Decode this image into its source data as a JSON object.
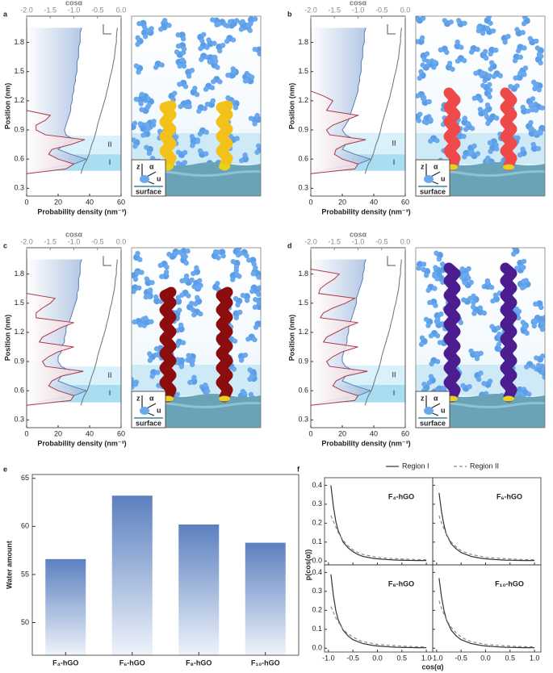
{
  "chart_data": [
    {
      "type": "density-profile",
      "panel_label": "a",
      "ylabel": "Position (nm)",
      "xlabel": "Probability density  (nm⁻³)",
      "x2label": "cosα",
      "xlim": [
        0,
        60
      ],
      "xticks": [
        0,
        20,
        40,
        60
      ],
      "x2lim": [
        -2,
        0
      ],
      "x2ticks": [
        {
          "value": -2,
          "label": "-2.0"
        },
        {
          "value": -1.5,
          "label": "-1.5"
        },
        {
          "value": -1,
          "label": "-1.0"
        },
        {
          "value": -0.5,
          "label": "-0.5"
        },
        {
          "value": 0,
          "label": "0.0"
        }
      ],
      "ylim": [
        0.22,
        2.07
      ],
      "yticks": [
        0.3,
        0.6,
        0.9,
        1.2,
        1.5,
        1.8
      ],
      "y": [
        0.45,
        0.5,
        0.55,
        0.6,
        0.65,
        0.7,
        0.75,
        0.8,
        0.85,
        0.9,
        0.95,
        1.0,
        1.05,
        1.1,
        1.15,
        1.2,
        1.25,
        1.3,
        1.35,
        1.4,
        1.45,
        1.5,
        1.55,
        1.6,
        1.65,
        1.7,
        1.75,
        1.8,
        1.85,
        1.9,
        1.95
      ],
      "regions": [
        {
          "label": "I",
          "range": [
            0.48,
            0.65
          ]
        },
        {
          "label": "II",
          "range": [
            0.65,
            0.84
          ]
        }
      ],
      "inset": {
        "z": "z",
        "alpha": "α",
        "u": "u",
        "surface": "surface"
      },
      "series": [
        {
          "color": "#5b7fb5",
          "fill": "#9fb8dc",
          "values": [
            0,
            12,
            30,
            38,
            28,
            20,
            24,
            30,
            25,
            24,
            25,
            26,
            27,
            28,
            28,
            29,
            29,
            30,
            30,
            31,
            31,
            32,
            32,
            32,
            33,
            33,
            33,
            34,
            34,
            34,
            35
          ]
        },
        {
          "color": "#a83a4a",
          "fill": "#f3d3d8",
          "values": [
            0,
            25,
            30,
            20,
            14,
            16,
            28,
            37,
            12,
            6,
            6,
            12,
            15,
            0,
            0,
            0,
            0,
            0,
            0,
            0,
            0,
            0,
            0,
            0,
            0,
            0,
            0,
            0,
            0,
            0,
            0
          ]
        },
        {
          "color": "#707070",
          "axis": "x2",
          "values": [
            -0.85,
            -0.82,
            -0.78,
            -0.72,
            -0.68,
            -0.65,
            -0.62,
            -0.58,
            -0.55,
            -0.52,
            -0.5,
            -0.47,
            -0.44,
            -0.41,
            -0.38,
            -0.35,
            -0.32,
            -0.3,
            -0.27,
            -0.25,
            -0.23,
            -0.2,
            -0.18,
            -0.16,
            -0.14,
            -0.13,
            -0.12,
            -0.1,
            -0.1,
            -0.09,
            -0.08
          ]
        }
      ]
    },
    {
      "type": "density-profile",
      "panel_label": "b",
      "ylabel": "Position (nm)",
      "xlabel": "Probability density  (nm⁻³)",
      "x2label": "cosα",
      "xlim": [
        0,
        60
      ],
      "xticks": [
        0,
        20,
        40,
        60
      ],
      "x2lim": [
        -2,
        0
      ],
      "x2ticks": [
        {
          "value": -2,
          "label": "-2.0"
        },
        {
          "value": -1.5,
          "label": "-1.5"
        },
        {
          "value": -1,
          "label": "-1.0"
        },
        {
          "value": -0.5,
          "label": "-0.5"
        },
        {
          "value": 0,
          "label": "0.0"
        }
      ],
      "ylim": [
        0.22,
        2.07
      ],
      "yticks": [
        0.3,
        0.6,
        0.9,
        1.2,
        1.5,
        1.8
      ],
      "y": [
        0.45,
        0.5,
        0.55,
        0.6,
        0.65,
        0.7,
        0.75,
        0.8,
        0.85,
        0.9,
        0.95,
        1.0,
        1.05,
        1.1,
        1.15,
        1.2,
        1.25,
        1.3,
        1.35,
        1.4,
        1.45,
        1.5,
        1.55,
        1.6,
        1.65,
        1.7,
        1.75,
        1.8,
        1.85,
        1.9,
        1.95
      ],
      "regions": [
        {
          "label": "I",
          "range": [
            0.48,
            0.65
          ]
        },
        {
          "label": "II",
          "range": [
            0.65,
            0.87
          ]
        }
      ],
      "inset": {
        "z": "z",
        "alpha": "α",
        "u": "u",
        "surface": "surface"
      },
      "series": [
        {
          "color": "#5b7fb5",
          "fill": "#9fb8dc",
          "values": [
            0,
            12,
            30,
            38,
            28,
            20,
            22,
            28,
            22,
            20,
            22,
            24,
            25,
            26,
            27,
            28,
            29,
            30,
            30,
            31,
            31,
            32,
            32,
            32,
            33,
            33,
            33,
            34,
            34,
            34,
            35
          ]
        },
        {
          "color": "#a83a4a",
          "fill": "#f3d3d8",
          "values": [
            0,
            28,
            30,
            20,
            15,
            16,
            22,
            35,
            12,
            10,
            14,
            22,
            30,
            10,
            12,
            14,
            8,
            0,
            0,
            0,
            0,
            0,
            0,
            0,
            0,
            0,
            0,
            0,
            0,
            0,
            0
          ]
        },
        {
          "color": "#707070",
          "axis": "x2",
          "values": [
            -0.85,
            -0.82,
            -0.78,
            -0.72,
            -0.68,
            -0.65,
            -0.62,
            -0.58,
            -0.55,
            -0.52,
            -0.5,
            -0.47,
            -0.44,
            -0.41,
            -0.38,
            -0.35,
            -0.32,
            -0.3,
            -0.27,
            -0.25,
            -0.23,
            -0.2,
            -0.18,
            -0.16,
            -0.14,
            -0.13,
            -0.12,
            -0.1,
            -0.1,
            -0.09,
            -0.08
          ]
        }
      ]
    },
    {
      "type": "density-profile",
      "panel_label": "c",
      "ylabel": "Position (nm)",
      "xlabel": "Probability density  (nm⁻³)",
      "x2label": "cosα",
      "xlim": [
        0,
        60
      ],
      "xticks": [
        0,
        20,
        40,
        60
      ],
      "x2lim": [
        -2,
        0
      ],
      "x2ticks": [
        {
          "value": -2,
          "label": "-2.0"
        },
        {
          "value": -1.5,
          "label": "-1.5"
        },
        {
          "value": -1,
          "label": "-1.0"
        },
        {
          "value": -0.5,
          "label": "-0.5"
        },
        {
          "value": 0,
          "label": "0.0"
        }
      ],
      "ylim": [
        0.22,
        2.07
      ],
      "yticks": [
        0.3,
        0.6,
        0.9,
        1.2,
        1.5,
        1.8
      ],
      "y": [
        0.45,
        0.5,
        0.55,
        0.6,
        0.65,
        0.7,
        0.75,
        0.8,
        0.85,
        0.9,
        0.95,
        1.0,
        1.05,
        1.1,
        1.15,
        1.2,
        1.25,
        1.3,
        1.35,
        1.4,
        1.45,
        1.5,
        1.55,
        1.6,
        1.65,
        1.7,
        1.75,
        1.8,
        1.85,
        1.9,
        1.95
      ],
      "regions": [
        {
          "label": "I",
          "range": [
            0.48,
            0.66
          ]
        },
        {
          "label": "II",
          "range": [
            0.66,
            0.85
          ]
        }
      ],
      "inset": {
        "z": "z",
        "alpha": "α",
        "u": "u",
        "surface": "surface"
      },
      "series": [
        {
          "color": "#5b7fb5",
          "fill": "#9fb8dc",
          "values": [
            0,
            12,
            30,
            38,
            28,
            20,
            22,
            28,
            22,
            20,
            20,
            22,
            22,
            24,
            24,
            25,
            25,
            27,
            28,
            29,
            30,
            31,
            32,
            32,
            33,
            33,
            33,
            34,
            34,
            34,
            35
          ]
        },
        {
          "color": "#a83a4a",
          "fill": "#f3d3d8",
          "values": [
            0,
            28,
            30,
            20,
            14,
            16,
            22,
            36,
            12,
            10,
            14,
            20,
            30,
            8,
            10,
            16,
            22,
            30,
            6,
            6,
            10,
            15,
            18,
            0,
            0,
            0,
            0,
            0,
            0,
            0,
            0
          ]
        },
        {
          "color": "#707070",
          "axis": "x2",
          "values": [
            -0.85,
            -0.82,
            -0.78,
            -0.72,
            -0.68,
            -0.65,
            -0.62,
            -0.58,
            -0.55,
            -0.52,
            -0.5,
            -0.47,
            -0.44,
            -0.41,
            -0.38,
            -0.35,
            -0.32,
            -0.3,
            -0.27,
            -0.25,
            -0.23,
            -0.2,
            -0.18,
            -0.16,
            -0.14,
            -0.13,
            -0.12,
            -0.1,
            -0.1,
            -0.09,
            -0.08
          ]
        }
      ]
    },
    {
      "type": "density-profile",
      "panel_label": "d",
      "ylabel": "Position (nm)",
      "xlabel": "Probability density  (nm⁻³)",
      "x2label": "cosα",
      "xlim": [
        0,
        60
      ],
      "xticks": [
        0,
        20,
        40,
        60
      ],
      "x2lim": [
        -2,
        0
      ],
      "x2ticks": [
        {
          "value": -2,
          "label": "-2.0"
        },
        {
          "value": -1.5,
          "label": "-1.5"
        },
        {
          "value": -1,
          "label": "-1.0"
        },
        {
          "value": -0.5,
          "label": "-0.5"
        },
        {
          "value": 0,
          "label": "0.0"
        }
      ],
      "ylim": [
        0.22,
        2.07
      ],
      "yticks": [
        0.3,
        0.6,
        0.9,
        1.2,
        1.5,
        1.8
      ],
      "y": [
        0.45,
        0.5,
        0.55,
        0.6,
        0.65,
        0.7,
        0.75,
        0.8,
        0.85,
        0.9,
        0.95,
        1.0,
        1.05,
        1.1,
        1.15,
        1.2,
        1.25,
        1.3,
        1.35,
        1.4,
        1.45,
        1.5,
        1.55,
        1.6,
        1.65,
        1.7,
        1.75,
        1.8,
        1.85,
        1.9,
        1.95
      ],
      "regions": [
        {
          "label": "I",
          "range": [
            0.48,
            0.66
          ]
        },
        {
          "label": "II",
          "range": [
            0.66,
            0.86
          ]
        }
      ],
      "inset": {
        "z": "z",
        "alpha": "α",
        "u": "u",
        "surface": "surface"
      },
      "series": [
        {
          "color": "#5b7fb5",
          "fill": "#9fb8dc",
          "values": [
            0,
            12,
            30,
            38,
            28,
            20,
            22,
            28,
            22,
            20,
            20,
            21,
            22,
            23,
            23,
            24,
            24,
            25,
            26,
            27,
            28,
            29,
            29,
            30,
            31,
            32,
            33,
            33,
            34,
            34,
            35
          ]
        },
        {
          "color": "#a83a4a",
          "fill": "#f3d3d8",
          "values": [
            0,
            28,
            30,
            20,
            14,
            16,
            22,
            36,
            12,
            10,
            14,
            20,
            30,
            8,
            10,
            16,
            22,
            30,
            6,
            8,
            14,
            22,
            28,
            5,
            6,
            10,
            15,
            18,
            0,
            0,
            0
          ]
        },
        {
          "color": "#707070",
          "axis": "x2",
          "values": [
            -0.85,
            -0.82,
            -0.78,
            -0.72,
            -0.68,
            -0.65,
            -0.62,
            -0.58,
            -0.55,
            -0.52,
            -0.5,
            -0.47,
            -0.44,
            -0.41,
            -0.38,
            -0.35,
            -0.32,
            -0.3,
            -0.27,
            -0.25,
            -0.23,
            -0.2,
            -0.18,
            -0.16,
            -0.14,
            -0.13,
            -0.12,
            -0.1,
            -0.1,
            -0.09,
            -0.08
          ]
        }
      ]
    },
    {
      "type": "bar",
      "panel_label": "e",
      "ylabel": "Water amount",
      "categories": [
        "F₄-hGO",
        "F₆-hGO",
        "F₈-hGO",
        "F₁₀-hGO"
      ],
      "values": [
        56.6,
        63.2,
        60.2,
        58.3
      ],
      "color": "#5b80bf",
      "ylim": [
        46.6,
        65.4
      ],
      "yticks": [
        50,
        55,
        60,
        65
      ]
    },
    {
      "type": "small-multiples",
      "panel_label": "f",
      "xlabel": "cos(α)",
      "ylabel": "p(cos(α))",
      "xlim": [
        -1.08,
        1.13
      ],
      "xticks": [
        {
          "value": -1,
          "label": "-1.0"
        },
        -0.5,
        {
          "value": 0,
          "label": "0.0"
        },
        0.5,
        {
          "value": 1,
          "label": "1.0"
        }
      ],
      "ylim": [
        -0.02,
        0.44
      ],
      "yticks": [
        {
          "value": 0,
          "label": "0.0"
        },
        0.1,
        0.2,
        0.3,
        0.4
      ],
      "series": [
        {
          "name": "Region I",
          "color": "#333333",
          "dash": "solid"
        },
        {
          "name": "Region II",
          "color": "#888888",
          "dash": "dashed"
        }
      ],
      "x": [
        -0.95,
        -0.9,
        -0.85,
        -0.8,
        -0.7,
        -0.6,
        -0.5,
        -0.4,
        -0.3,
        -0.2,
        -0.1,
        0,
        0.2,
        0.4,
        0.6,
        0.8,
        1.0
      ],
      "panels": [
        {
          "title": "F₄-hGO",
          "values": [
            [
              0.4,
              0.29,
              0.21,
              0.16,
              0.1,
              0.07,
              0.05,
              0.035,
              0.025,
              0.02,
              0.015,
              0.012,
              0.008,
              0.005,
              0.004,
              0.003,
              0.003
            ],
            [
              0.24,
              0.21,
              0.18,
              0.15,
              0.11,
              0.08,
              0.06,
              0.045,
              0.035,
              0.03,
              0.025,
              0.02,
              0.015,
              0.012,
              0.01,
              0.008,
              0.007
            ]
          ]
        },
        {
          "title": "F₆-hGO",
          "values": [
            [
              0.36,
              0.26,
              0.19,
              0.14,
              0.09,
              0.065,
              0.045,
              0.035,
              0.025,
              0.02,
              0.015,
              0.012,
              0.008,
              0.005,
              0.004,
              0.003,
              0.003
            ],
            [
              0.24,
              0.2,
              0.17,
              0.14,
              0.1,
              0.075,
              0.055,
              0.045,
              0.035,
              0.03,
              0.025,
              0.02,
              0.016,
              0.013,
              0.01,
              0.008,
              0.007
            ]
          ]
        },
        {
          "title": "F₈-hGO",
          "values": [
            [
              0.39,
              0.28,
              0.2,
              0.15,
              0.095,
              0.065,
              0.045,
              0.035,
              0.025,
              0.02,
              0.015,
              0.012,
              0.008,
              0.005,
              0.004,
              0.003,
              0.003
            ],
            [
              0.22,
              0.19,
              0.16,
              0.14,
              0.1,
              0.075,
              0.06,
              0.045,
              0.035,
              0.03,
              0.025,
              0.02,
              0.016,
              0.013,
              0.01,
              0.008,
              0.007
            ]
          ]
        },
        {
          "title": "F₁₀-hGO",
          "values": [
            [
              0.37,
              0.27,
              0.2,
              0.15,
              0.095,
              0.065,
              0.045,
              0.035,
              0.025,
              0.02,
              0.015,
              0.012,
              0.008,
              0.005,
              0.004,
              0.003,
              0.003
            ],
            [
              0.25,
              0.21,
              0.18,
              0.15,
              0.11,
              0.08,
              0.06,
              0.045,
              0.035,
              0.03,
              0.025,
              0.02,
              0.016,
              0.013,
              0.01,
              0.008,
              0.007
            ]
          ]
        }
      ]
    }
  ]
}
